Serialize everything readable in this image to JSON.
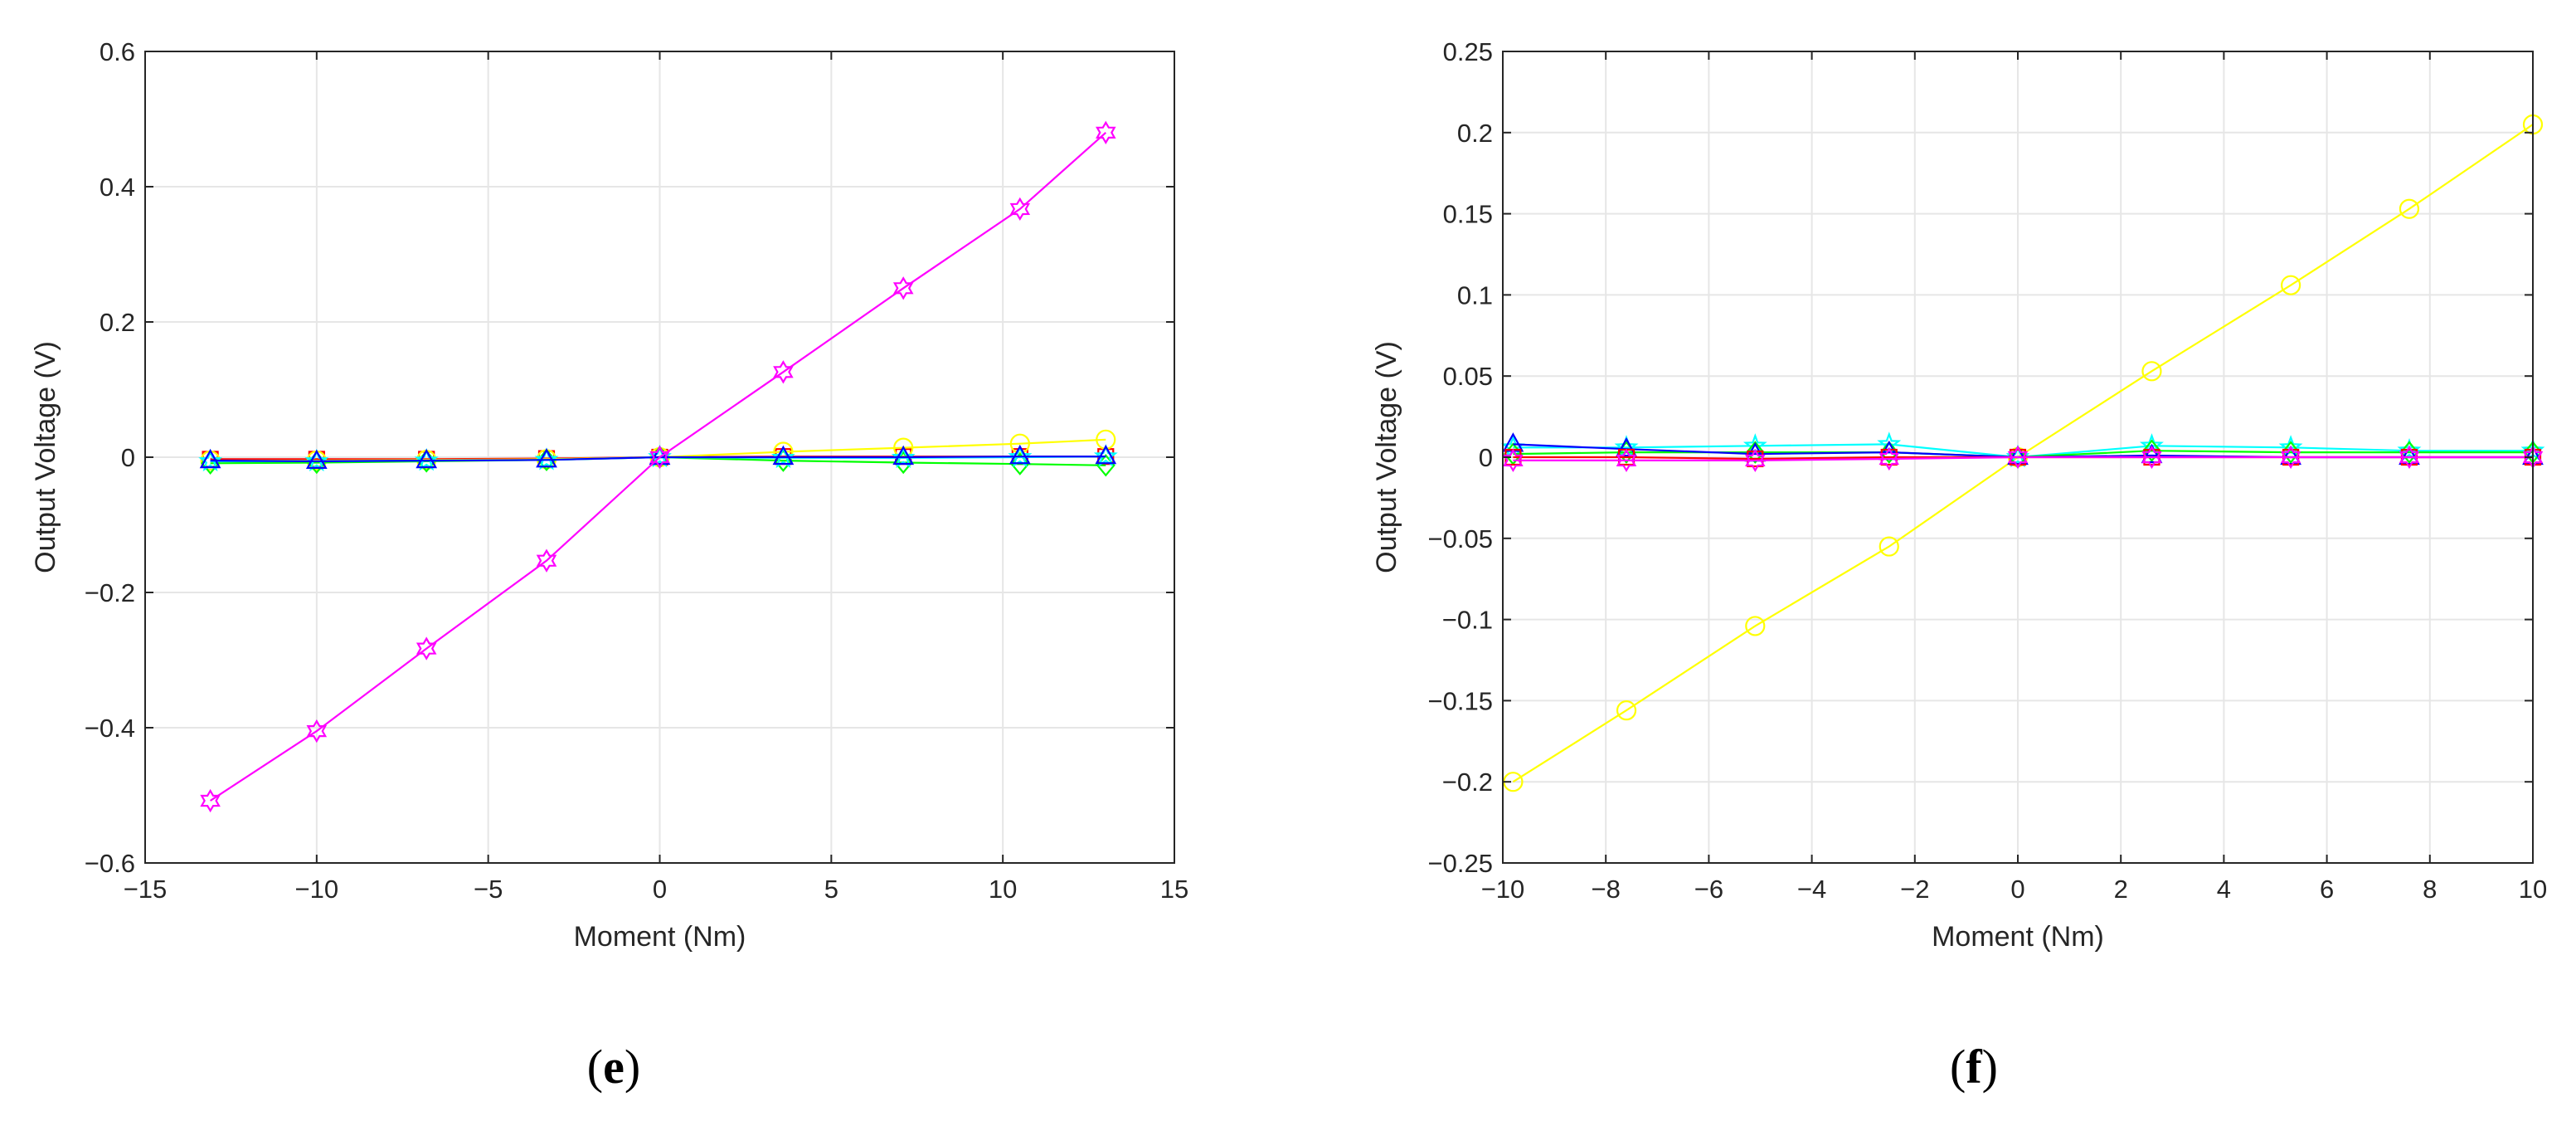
{
  "colors": {
    "magenta": "#ff00ff",
    "yellow": "#ffff00",
    "green": "#00ff00",
    "cyan": "#00ffff",
    "blue": "#0000ff",
    "red": "#ff0000",
    "grid": "#e6e6e6",
    "axis": "#262626"
  },
  "chart_data": [
    {
      "type": "line",
      "panel_label": "(e)",
      "xlabel": "Moment (Nm)",
      "ylabel": "Output Voltage (V)",
      "xlim": [
        -15,
        15
      ],
      "ylim": [
        -0.6,
        0.6
      ],
      "xticks": [
        -15,
        -10,
        -5,
        0,
        5,
        10,
        15
      ],
      "yticks": [
        -0.6,
        -0.4,
        -0.2,
        0,
        0.2,
        0.4,
        0.6
      ],
      "xtick_labels": [
        "−15",
        "−10",
        "−5",
        "0",
        "5",
        "10",
        "15"
      ],
      "ytick_labels": [
        "−0.6",
        "−0.4",
        "−0.2",
        "0",
        "0.2",
        "0.4",
        "0.6"
      ],
      "grid": true,
      "x": [
        -13.1,
        -10,
        -6.8,
        -3.3,
        0,
        3.6,
        7.1,
        10.5,
        13
      ],
      "series": [
        {
          "color": "#ff0000",
          "marker": "square",
          "values": [
            -0.003,
            -0.003,
            -0.003,
            -0.002,
            0,
            0.001,
            0.001,
            0.001,
            0.001
          ]
        },
        {
          "color": "#ffff00",
          "marker": "circle",
          "values": [
            -0.005,
            -0.005,
            -0.004,
            -0.003,
            0,
            0.008,
            0.014,
            0.02,
            0.026
          ]
        },
        {
          "color": "#00ff00",
          "marker": "diamond",
          "values": [
            -0.009,
            -0.008,
            -0.006,
            -0.004,
            0,
            -0.005,
            -0.008,
            -0.01,
            -0.012
          ]
        },
        {
          "color": "#00ffff",
          "marker": "star5",
          "values": [
            -0.006,
            -0.006,
            -0.005,
            -0.004,
            0,
            -0.001,
            -0.001,
            0.0,
            0.001
          ]
        },
        {
          "color": "#0000ff",
          "marker": "triangle",
          "values": [
            -0.005,
            -0.006,
            -0.005,
            -0.004,
            0,
            0.0,
            0.0,
            0.001,
            0.001
          ]
        },
        {
          "color": "#ff00ff",
          "marker": "hexagram",
          "values": [
            -0.508,
            -0.405,
            -0.283,
            -0.153,
            0,
            0.126,
            0.25,
            0.367,
            0.48
          ]
        }
      ]
    },
    {
      "type": "line",
      "panel_label": "(f)",
      "xlabel": "Moment (Nm)",
      "ylabel": "Output Voltage (V)",
      "xlim": [
        -10,
        10
      ],
      "ylim": [
        -0.25,
        0.25
      ],
      "xticks": [
        -10,
        -8,
        -6,
        -4,
        -2,
        0,
        2,
        4,
        6,
        8,
        10
      ],
      "yticks": [
        -0.25,
        -0.2,
        -0.15,
        -0.1,
        -0.05,
        0,
        0.05,
        0.1,
        0.15,
        0.2,
        0.25
      ],
      "xtick_labels": [
        "−10",
        "−8",
        "−6",
        "−4",
        "−2",
        "0",
        "2",
        "4",
        "6",
        "8",
        "10"
      ],
      "ytick_labels": [
        "−0.25",
        "−0.2",
        "−0.15",
        "−0.1",
        "−0.05",
        "0",
        "0.05",
        "0.1",
        "0.15",
        "0.2",
        "0.25"
      ],
      "grid": true,
      "x": [
        -9.8,
        -7.6,
        -5.1,
        -2.5,
        0,
        2.6,
        5.3,
        7.6,
        10
      ],
      "series": [
        {
          "color": "#ffff00",
          "marker": "circle",
          "values": [
            -0.2,
            -0.156,
            -0.104,
            -0.055,
            0,
            0.053,
            0.106,
            0.153,
            0.205
          ]
        },
        {
          "color": "#00ffff",
          "marker": "star5",
          "values": [
            0.006,
            0.006,
            0.007,
            0.008,
            0,
            0.007,
            0.006,
            0.004,
            0.004
          ]
        },
        {
          "color": "#00ff00",
          "marker": "diamond",
          "values": [
            0.002,
            0.003,
            0.003,
            0.003,
            0,
            0.004,
            0.003,
            0.003,
            0.003
          ]
        },
        {
          "color": "#0000ff",
          "marker": "triangle",
          "values": [
            0.008,
            0.005,
            0.002,
            0.003,
            0,
            0.001,
            0.0,
            0.0,
            0.0
          ]
        },
        {
          "color": "#ff0000",
          "marker": "square",
          "values": [
            0.0,
            0.0,
            -0.001,
            0.0,
            0,
            0.0,
            0.0,
            0.0,
            0.0
          ]
        },
        {
          "color": "#ff00ff",
          "marker": "hexagram",
          "values": [
            -0.002,
            -0.002,
            -0.002,
            -0.001,
            0,
            0.0,
            0.0,
            0.0,
            0.0
          ]
        }
      ]
    }
  ]
}
